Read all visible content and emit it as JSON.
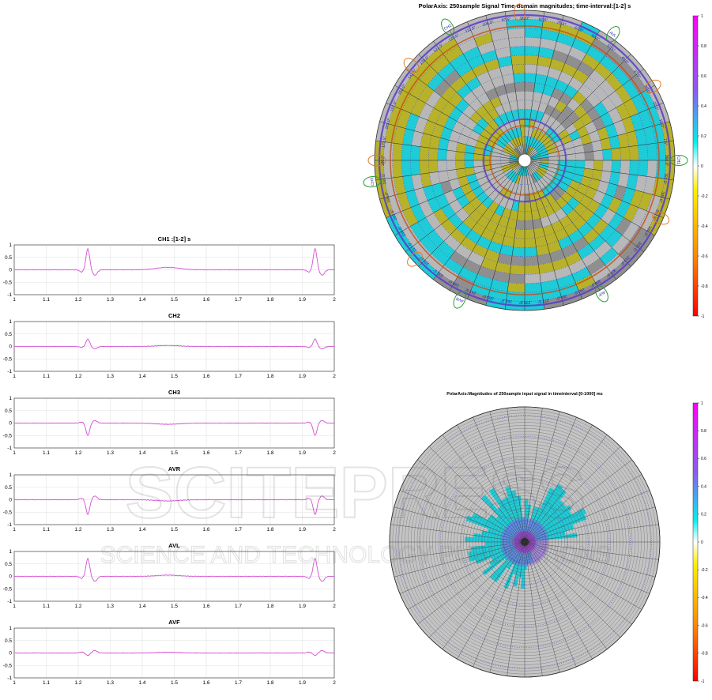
{
  "charts": {
    "ecg_panels": {
      "type": "line",
      "x_ticks": [
        "1",
        "1.1",
        "1.2",
        "1.3",
        "1.4",
        "1.5",
        "1.6",
        "1.7",
        "1.8",
        "1.9",
        "2"
      ],
      "y_ticks": [
        "1",
        "0.5",
        "0",
        "-0.5",
        "-1"
      ],
      "xlim": [
        1,
        2
      ],
      "ylim": [
        -1,
        1
      ],
      "line_color": "#d44fd4",
      "panels": [
        {
          "title": "CH1 :[1-2] s",
          "r_amp": 0.85,
          "q_amp": -0.22,
          "t_amp": 0.1
        },
        {
          "title": "CH2",
          "r_amp": 0.3,
          "q_amp": -0.1,
          "t_amp": 0.04
        },
        {
          "title": "CH3",
          "r_amp": -0.5,
          "q_amp": 0.1,
          "t_amp": -0.05
        },
        {
          "title": "AVR",
          "r_amp": -0.6,
          "q_amp": 0.15,
          "t_amp": -0.05
        },
        {
          "title": "AVL",
          "r_amp": 0.72,
          "q_amp": -0.2,
          "t_amp": 0.05
        },
        {
          "title": "AVF",
          "r_amp": -0.1,
          "q_amp": 0.1,
          "t_amp": 0.03
        }
      ],
      "beats_at": [
        1.23,
        1.94
      ]
    },
    "polar_top": {
      "type": "heatmap",
      "title": "PolarAxis: 250sample Signal Time-domain magnitudes; time-interval:[1-2] s",
      "colorbar_ticks": [
        "1",
        "0.8",
        "0.6",
        "0.4",
        "0.2",
        "0",
        "-0.2",
        "-0.4",
        "-0.6",
        "-0.8",
        "-1"
      ],
      "channel_labels": [
        "CH1",
        "AVL",
        "CH2",
        "CH3",
        "AVR",
        "AVF"
      ],
      "angle_labels": [
        "7.5°",
        "15.0°",
        "22.5°",
        "30.0°",
        "37.5°",
        "45.0°",
        "52.5°",
        "60.0°",
        "67.5°",
        "75.0°",
        "82.5°",
        "90.0°",
        "97.5°",
        "105.0°",
        "112.5°",
        "120.0°",
        "127.5°",
        "135.0°",
        "142.5°",
        "150.0°",
        "157.5°",
        "165.0°",
        "172.5°",
        "180.0°",
        "187.5°",
        "195.0°",
        "202.5°",
        "210.0°",
        "217.5°",
        "225.0°",
        "232.5°",
        "240.0°",
        "247.5°",
        "255.0°",
        "262.5°",
        "270.0°",
        "277.5°",
        "285.0°",
        "292.5°",
        "300.0°",
        "307.5°",
        "315.0°",
        "322.5°",
        "330.0°",
        "337.5°",
        "345.0°",
        "352.5°",
        "360.0°"
      ]
    },
    "polar_bottom": {
      "type": "heatmap",
      "title": "PolarAxis:Magnitudes of 250sample input signal in timeinterval:[0-1000] ms",
      "colorbar_ticks": [
        "1",
        "0.8",
        "0.6",
        "0.4",
        "0.2",
        "0",
        "-0.2",
        "-0.4",
        "-0.6",
        "-0.8",
        "-1"
      ]
    }
  },
  "colors": {
    "gray": "#b8b8b8",
    "cyan": "#1ecbd6",
    "olive": "#b7b22a",
    "darkgray": "#8f8f8f",
    "blue_grid": "#2424c8",
    "orange_circle": "#e07a28",
    "green_circle": "#2a9a3a"
  },
  "watermark": {
    "line1": "SCITEPRESS",
    "line2": "SCIENCE AND TECHNOLOGY PUBLICATIONS"
  }
}
